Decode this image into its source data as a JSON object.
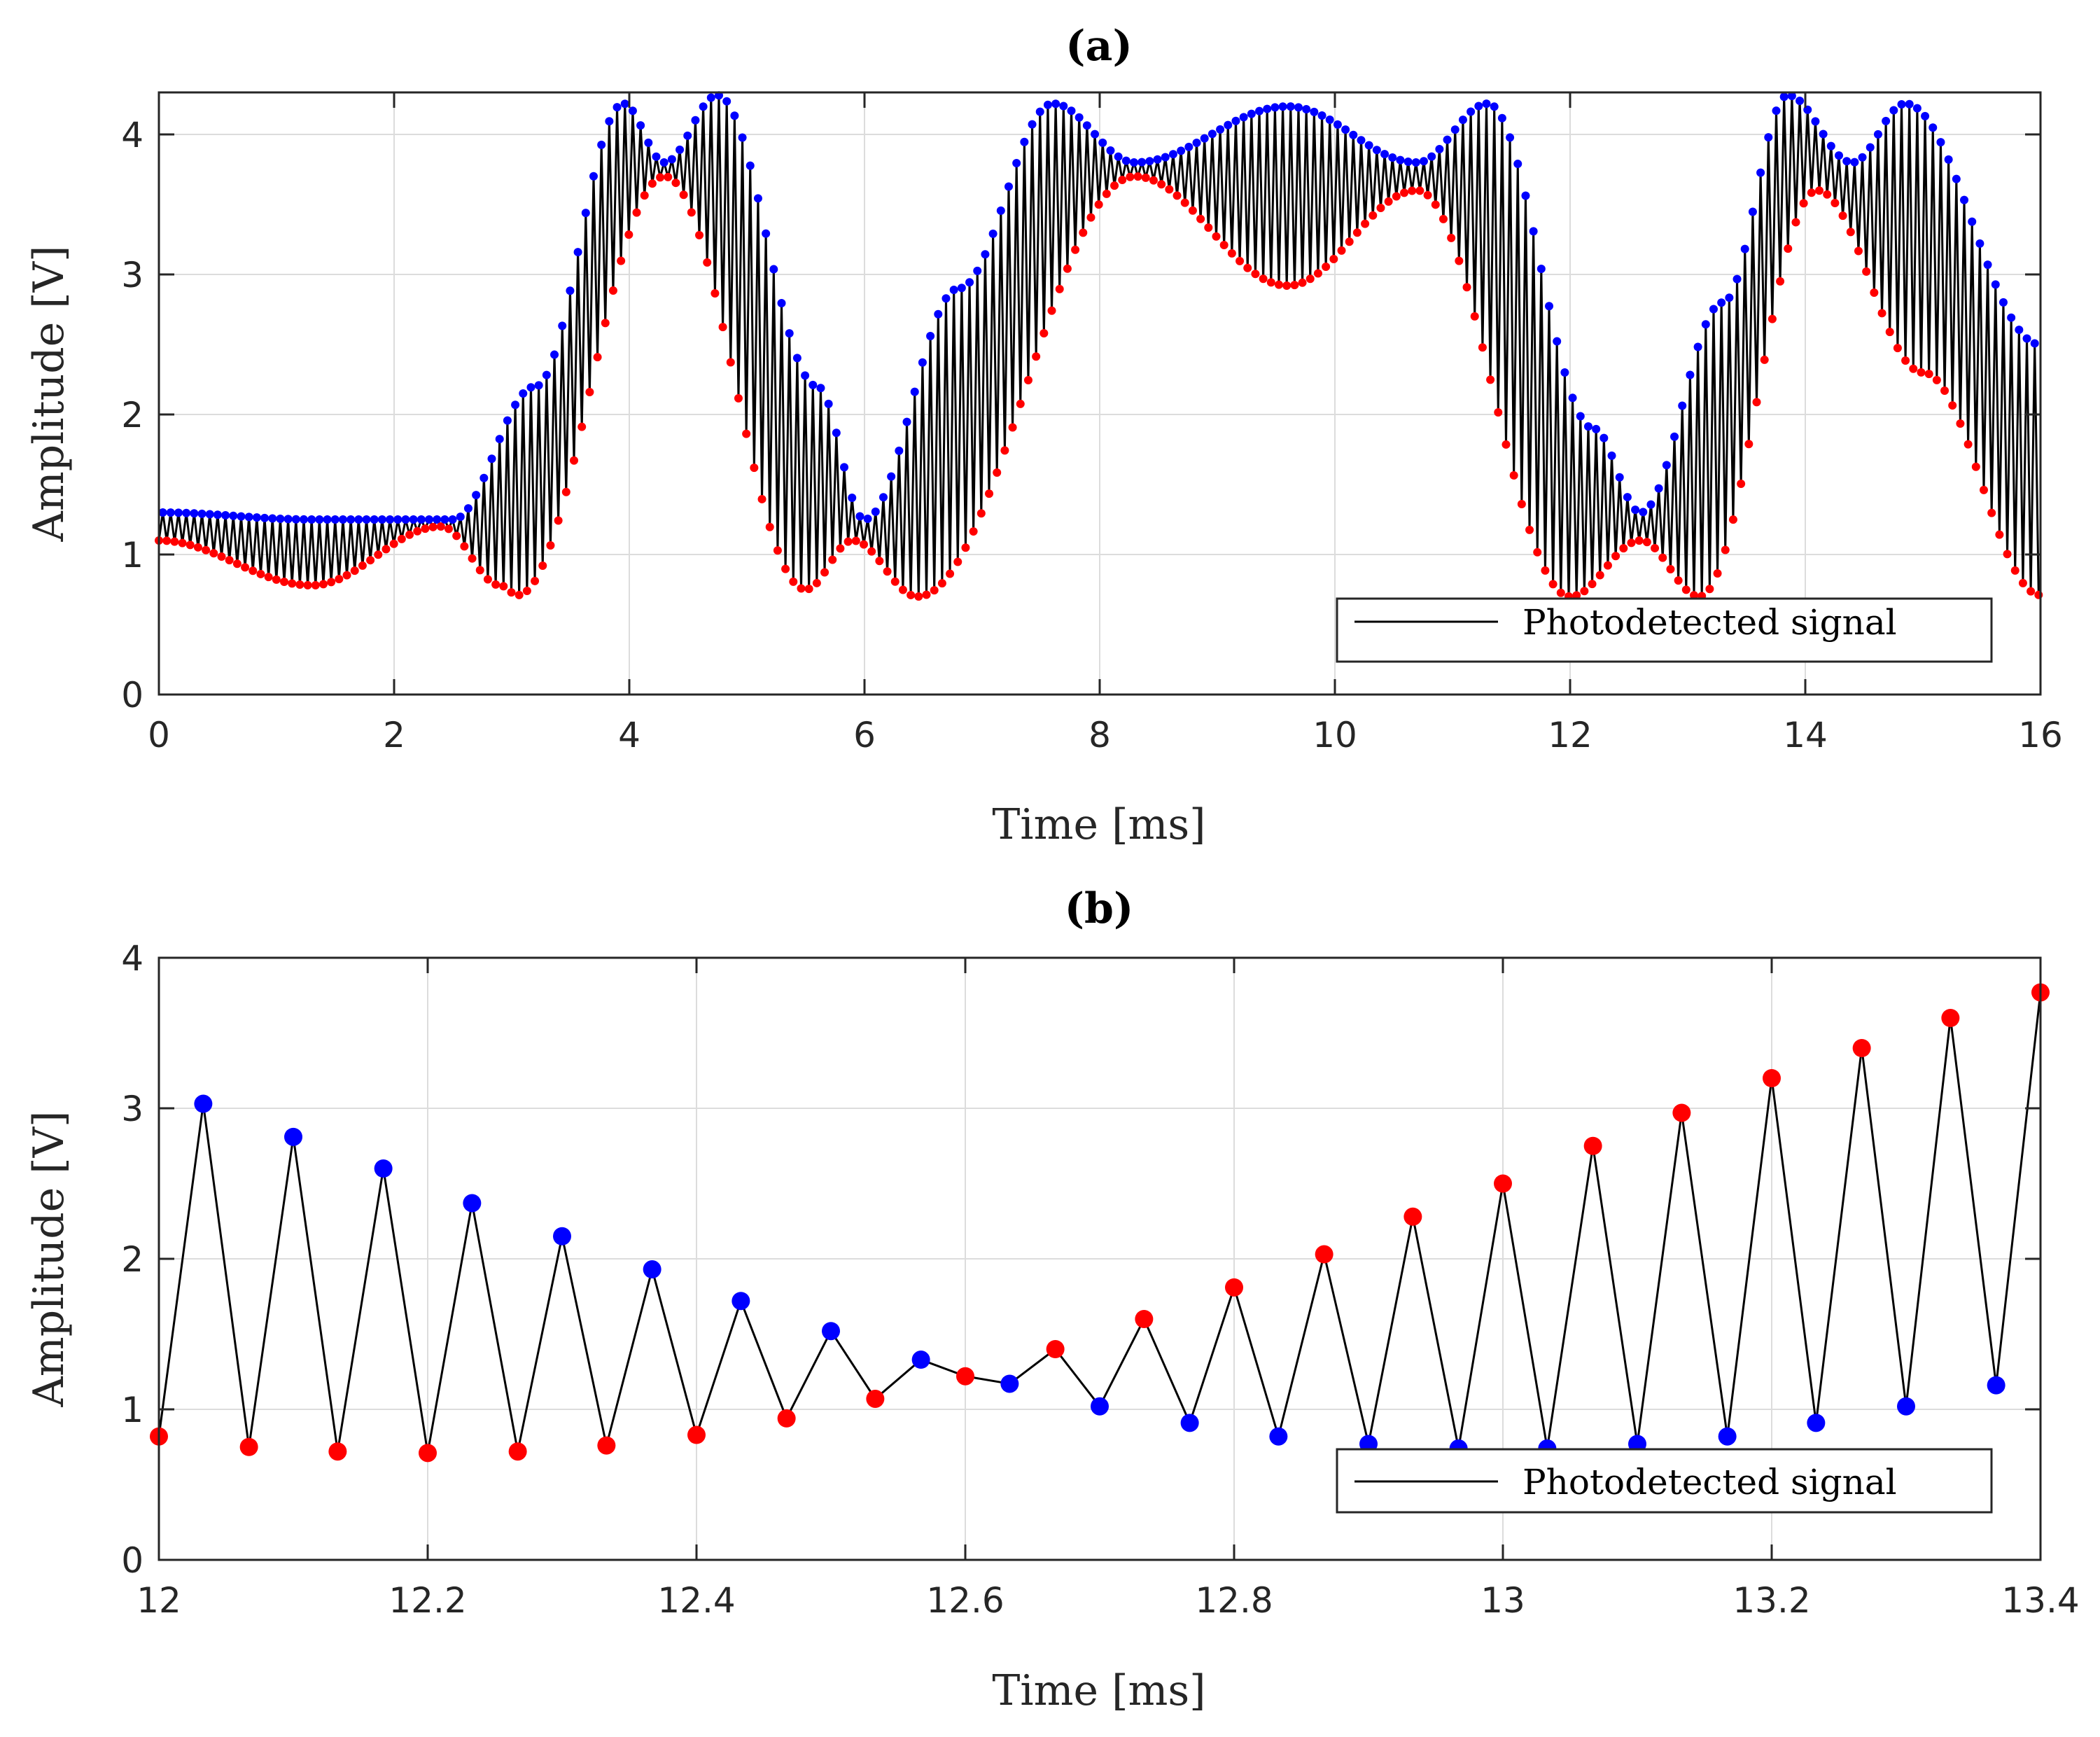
{
  "chart_data": [
    {
      "type": "line",
      "title": "(a)",
      "xlabel": "Time [ms]",
      "ylabel": "Amplitude [V]",
      "xlim": [
        0,
        16
      ],
      "ylim": [
        0,
        4.3
      ],
      "xticks": [
        0,
        2,
        4,
        6,
        8,
        10,
        12,
        14,
        16
      ],
      "yticks": [
        0,
        1,
        2,
        3,
        4
      ],
      "grid": true,
      "legend": {
        "entries": [
          "Photodetected signal"
        ],
        "placement": "bottom-right"
      },
      "colors": {
        "signal": "#000000",
        "upper_envelope": "#0000ff",
        "lower_envelope": "#ff0000"
      },
      "series": [
        {
          "name": "Photodetected signal",
          "sample_period_ms": 0.0333,
          "style": "line"
        }
      ],
      "envelope_points": {
        "upper": [
          [
            0,
            1.3
          ],
          [
            1.3,
            1.25
          ],
          [
            2.5,
            1.25
          ],
          [
            3.2,
            2.2
          ],
          [
            3.95,
            4.22
          ],
          [
            4.3,
            3.8
          ],
          [
            4.75,
            4.28
          ],
          [
            5.6,
            2.2
          ],
          [
            6.0,
            1.25
          ],
          [
            6.8,
            2.9
          ],
          [
            7.6,
            4.22
          ],
          [
            8.3,
            3.8
          ],
          [
            9.6,
            4.2
          ],
          [
            10.7,
            3.8
          ],
          [
            11.3,
            4.22
          ],
          [
            12.2,
            1.9
          ],
          [
            12.6,
            1.3
          ],
          [
            13.3,
            2.8
          ],
          [
            13.85,
            4.28
          ],
          [
            14.4,
            3.8
          ],
          [
            14.85,
            4.22
          ],
          [
            16.0,
            2.5
          ]
        ],
        "lower": [
          [
            0,
            1.1
          ],
          [
            1.3,
            0.78
          ],
          [
            2.4,
            1.2
          ],
          [
            2.9,
            0.78
          ],
          [
            3.05,
            0.71
          ],
          [
            4.3,
            3.7
          ],
          [
            5.5,
            0.75
          ],
          [
            5.9,
            1.1
          ],
          [
            6.45,
            0.7
          ],
          [
            8.3,
            3.7
          ],
          [
            9.6,
            2.92
          ],
          [
            10.7,
            3.6
          ],
          [
            12.0,
            0.7
          ],
          [
            12.6,
            1.1
          ],
          [
            13.1,
            0.7
          ],
          [
            14.1,
            3.6
          ],
          [
            15.0,
            2.3
          ],
          [
            16.0,
            0.71
          ]
        ]
      }
    },
    {
      "type": "line",
      "title": "(b)",
      "xlabel": "Time [ms]",
      "ylabel": "Amplitude [V]",
      "xlim": [
        12,
        13.4
      ],
      "ylim": [
        0,
        4
      ],
      "xticks": [
        12,
        12.2,
        12.4,
        12.6,
        12.8,
        13,
        13.2,
        13.4
      ],
      "yticks": [
        0,
        1,
        2,
        3,
        4
      ],
      "grid": true,
      "legend": {
        "entries": [
          "Photodetected signal"
        ],
        "placement": "bottom-right"
      },
      "series": [
        {
          "name": "Photodetected signal",
          "x": [
            12.0,
            12.033,
            12.067,
            12.1,
            12.133,
            12.167,
            12.2,
            12.233,
            12.267,
            12.3,
            12.333,
            12.367,
            12.4,
            12.433,
            12.467,
            12.5,
            12.533,
            12.567,
            12.6,
            12.633,
            12.667,
            12.7,
            12.733,
            12.767,
            12.8,
            12.833,
            12.867,
            12.9,
            12.933,
            12.967,
            13.0,
            13.033,
            13.067,
            13.1,
            13.133,
            13.167,
            13.2,
            13.233,
            13.267,
            13.3,
            13.333,
            13.367,
            13.4
          ],
          "y": [
            0.82,
            3.03,
            0.75,
            2.81,
            0.72,
            2.6,
            0.71,
            2.37,
            0.72,
            2.15,
            0.76,
            1.93,
            0.83,
            1.72,
            0.94,
            1.52,
            1.07,
            1.33,
            1.22,
            1.17,
            1.4,
            1.02,
            1.6,
            0.91,
            1.81,
            0.82,
            2.03,
            0.77,
            2.28,
            0.74,
            2.5,
            0.74,
            2.75,
            0.77,
            2.97,
            0.82,
            3.2,
            0.91,
            3.4,
            1.02,
            3.6,
            1.16,
            3.77
          ],
          "marker_colors": [
            "red",
            "blue",
            "red",
            "blue",
            "red",
            "blue",
            "red",
            "blue",
            "red",
            "blue",
            "red",
            "blue",
            "red",
            "blue",
            "red",
            "blue",
            "red",
            "blue",
            "red",
            "blue",
            "red",
            "blue",
            "red",
            "blue",
            "red",
            "blue",
            "red",
            "blue",
            "red",
            "blue",
            "red",
            "blue",
            "red",
            "blue",
            "red",
            "blue",
            "red",
            "blue",
            "red",
            "blue",
            "red",
            "blue",
            "red"
          ]
        }
      ]
    }
  ]
}
